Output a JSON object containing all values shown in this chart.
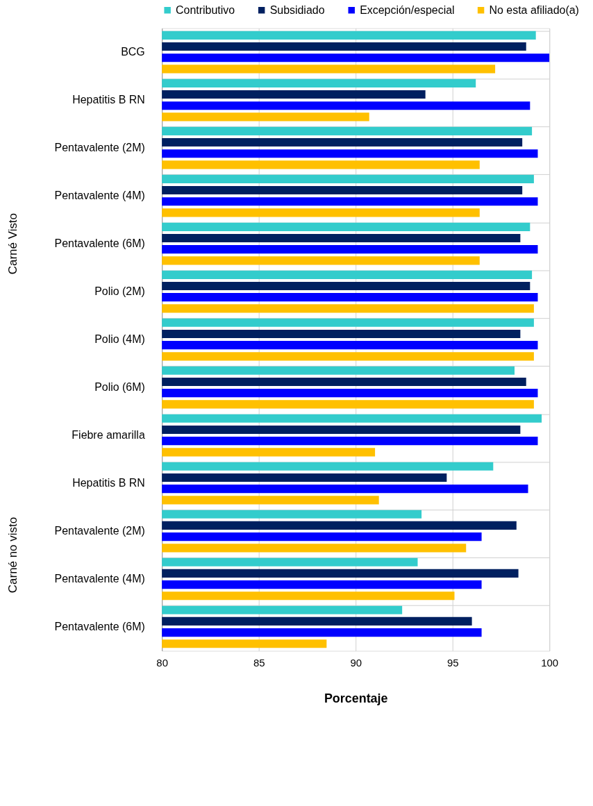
{
  "chart_data": {
    "type": "bar",
    "orientation": "horizontal",
    "xlabel": "Porcentaje",
    "categories": [
      "BCG",
      "Hepatitis B RN",
      "Pentavalente (2M)",
      "Pentavalente (4M)",
      "Pentavalente (6M)",
      "Polio (2M)",
      "Polio (4M)",
      "Polio (6M)",
      "Fiebre amarilla",
      "Hepatitis B RN",
      "Pentavalente (2M)",
      "Pentavalente (4M)",
      "Pentavalente (6M)"
    ],
    "series": [
      {
        "name": "Contributivo",
        "color": "#33cccc",
        "values": [
          99.3,
          96.2,
          99.1,
          99.2,
          99.0,
          99.1,
          99.2,
          98.2,
          99.6,
          97.1,
          93.4,
          93.2,
          92.4
        ]
      },
      {
        "name": "Subsidiado",
        "color": "#002060",
        "values": [
          98.8,
          93.6,
          98.6,
          98.6,
          98.5,
          99.0,
          98.5,
          98.8,
          98.5,
          94.7,
          98.3,
          98.4,
          96.0
        ]
      },
      {
        "name": "Excepción/especial",
        "color": "#0000ff",
        "values": [
          100.0,
          99.0,
          99.4,
          99.4,
          99.4,
          99.4,
          99.4,
          99.4,
          99.4,
          98.9,
          96.5,
          96.5,
          96.5
        ]
      },
      {
        "name": "No esta afiliado(a)",
        "color": "#ffc000",
        "values": [
          97.2,
          90.7,
          96.4,
          96.4,
          96.4,
          99.2,
          99.2,
          99.2,
          91.0,
          91.2,
          95.7,
          95.1,
          88.5
        ]
      }
    ],
    "annotations": [
      "Carné Visto",
      "Carné no visto"
    ],
    "xlim": [
      80,
      100
    ],
    "xticks": [
      80,
      85,
      90,
      95,
      100
    ],
    "grid": true,
    "legend": "top"
  }
}
